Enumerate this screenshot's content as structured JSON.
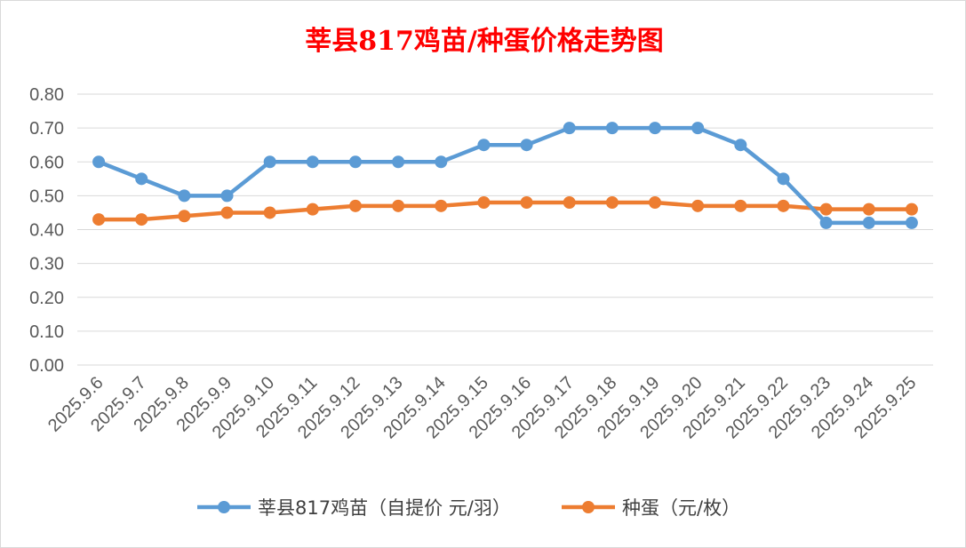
{
  "chart_data": {
    "type": "line",
    "title": "莘县817鸡苗/种蛋价格走势图",
    "title_color": "#FF0000",
    "x": [
      "2025.9.6",
      "2025.9.7",
      "2025.9.8",
      "2025.9.9",
      "2025.9.10",
      "2025.9.11",
      "2025.9.12",
      "2025.9.13",
      "2025.9.14",
      "2025.9.15",
      "2025.9.16",
      "2025.9.17",
      "2025.9.18",
      "2025.9.19",
      "2025.9.20",
      "2025.9.21",
      "2025.9.22",
      "2025.9.23",
      "2025.9.24",
      "2025.9.25"
    ],
    "series": [
      {
        "name": "莘县817鸡苗（自提价 元/羽）",
        "color": "#5B9BD5",
        "values": [
          0.6,
          0.55,
          0.5,
          0.5,
          0.6,
          0.6,
          0.6,
          0.6,
          0.6,
          0.65,
          0.65,
          0.7,
          0.7,
          0.7,
          0.7,
          0.65,
          0.55,
          0.42,
          0.42,
          0.42
        ]
      },
      {
        "name": "种蛋（元/枚）",
        "color": "#ED7D31",
        "values": [
          0.43,
          0.43,
          0.44,
          0.45,
          0.45,
          0.46,
          0.47,
          0.47,
          0.47,
          0.48,
          0.48,
          0.48,
          0.48,
          0.48,
          0.47,
          0.47,
          0.47,
          0.46,
          0.46,
          0.46
        ]
      }
    ],
    "yticks": [
      "0.00",
      "0.10",
      "0.20",
      "0.30",
      "0.40",
      "0.50",
      "0.60",
      "0.70",
      "0.80"
    ],
    "ylim": [
      0,
      0.8
    ],
    "grid": true,
    "legend_position": "bottom"
  }
}
